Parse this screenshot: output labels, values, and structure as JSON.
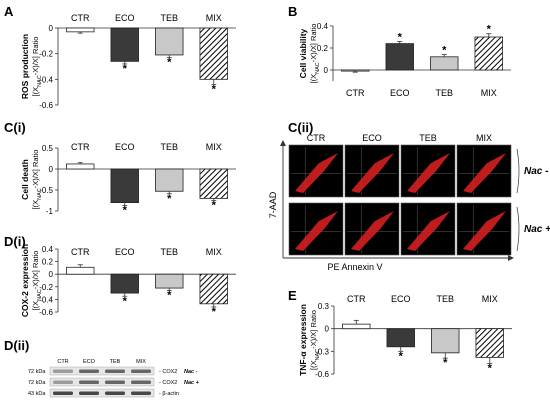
{
  "panel_letters": {
    "a": "A",
    "b": "B",
    "ci": "C(i)",
    "cii": "C(ii)",
    "di": "D(i)",
    "dii": "D(ii)",
    "e": "E"
  },
  "hatch_note": "MIX bars drawn with diagonal stripes",
  "colors": {
    "CTR": "#ffffff",
    "ECO": "#3a3a3a",
    "TEB": "#c8c8c8",
    "MIX": "hatch",
    "dot": "#d42020",
    "bg": "#000000"
  },
  "chart_data": [
    {
      "id": "A",
      "type": "bar",
      "categories": [
        "CTR",
        "ECO",
        "TEB",
        "MIX"
      ],
      "values": [
        -0.03,
        -0.26,
        -0.21,
        -0.4
      ],
      "errors": [
        0.01,
        0.02,
        0.02,
        0.04
      ],
      "significant": [
        false,
        true,
        true,
        true
      ],
      "ylabel_main": "ROS production",
      "ylabel_ratio": "[(X_NAC-X)/X] Ratio",
      "ylim": [
        -0.6,
        0
      ],
      "yticks": [
        "0",
        "-0.2",
        "-0.4",
        "-0.6"
      ]
    },
    {
      "id": "B",
      "type": "bar",
      "categories": [
        "CTR",
        "ECO",
        "TEB",
        "MIX"
      ],
      "values": [
        -0.01,
        0.24,
        0.12,
        0.3
      ],
      "errors": [
        0.01,
        0.02,
        0.02,
        0.03
      ],
      "significant": [
        false,
        true,
        true,
        true
      ],
      "ylabel_main": "Cell viability",
      "ylabel_ratio": "[(X_NAC-X)/X] Ratio",
      "ylim": [
        -0.1,
        0.4
      ],
      "yticks": [
        "0.4",
        "0.2",
        "0"
      ]
    },
    {
      "id": "C(i)",
      "type": "bar",
      "categories": [
        "CTR",
        "ECO",
        "TEB",
        "MIX"
      ],
      "values": [
        0.12,
        -0.8,
        -0.53,
        -0.7
      ],
      "errors": [
        0.03,
        0.07,
        0.06,
        0.05
      ],
      "significant": [
        false,
        true,
        true,
        true
      ],
      "ylabel_main": "Cell death",
      "ylabel_ratio": "[(X_NAC-X)/X] Ratio",
      "ylim": [
        -1,
        0.5
      ],
      "yticks": [
        "0.5",
        "0",
        "-0.5",
        "-1"
      ]
    },
    {
      "id": "D(i)",
      "type": "bar",
      "categories": [
        "CTR",
        "ECO",
        "TEB",
        "MIX"
      ],
      "values": [
        0.11,
        -0.3,
        -0.22,
        -0.47
      ],
      "errors": [
        0.04,
        0.05,
        0.04,
        0.05
      ],
      "significant": [
        false,
        true,
        true,
        true
      ],
      "ylabel_main": "COX-2 expression",
      "ylabel_ratio": "[(X_NAC-X)/X] Ratio",
      "ylim": [
        -0.6,
        0.4
      ],
      "yticks": [
        "0.4",
        "0.2",
        "0",
        "-0.2",
        "-0.4",
        "-0.6"
      ]
    },
    {
      "id": "E",
      "type": "bar",
      "categories": [
        "CTR",
        "ECO",
        "TEB",
        "MIX"
      ],
      "values": [
        0.06,
        -0.24,
        -0.32,
        -0.38
      ],
      "errors": [
        0.05,
        0.06,
        0.07,
        0.08
      ],
      "significant": [
        false,
        true,
        true,
        true
      ],
      "ylabel_main": "TNF-α expression",
      "ylabel_ratio": "[(X_NAC-X)/X] Ratio",
      "ylim": [
        -0.6,
        0.3
      ],
      "yticks": [
        "0.3",
        "0",
        "-0.3",
        "-0.6"
      ]
    }
  ],
  "flow": {
    "columns": [
      "CTR",
      "ECO",
      "TEB",
      "MIX"
    ],
    "rows": [
      "Nac -",
      "Nac +"
    ],
    "ylabel": "7-AAD",
    "xlabel": "PE Annexin V"
  },
  "western": {
    "lanes": [
      "CTR",
      "ECO",
      "TEB",
      "MIX"
    ],
    "rows": [
      {
        "kda": "72 kDa",
        "band": "COX2",
        "tag": "Nac -"
      },
      {
        "kda": "72 kDa",
        "band": "COX2",
        "tag": "Nac +"
      },
      {
        "kda": "43 kDa",
        "band": "β-actin",
        "tag": ""
      }
    ]
  }
}
